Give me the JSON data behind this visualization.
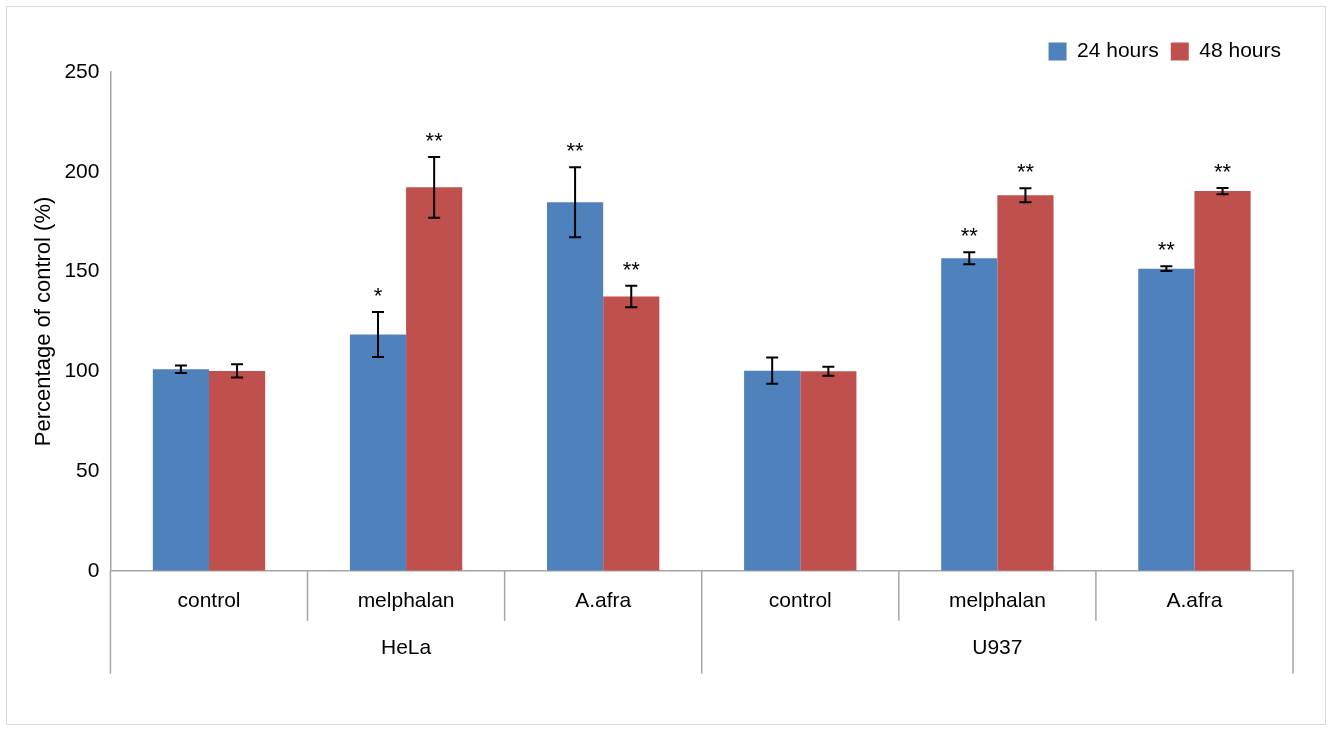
{
  "chart_data": {
    "type": "bar",
    "ylabel": "Percentage of control (%)",
    "categories": [
      "control",
      "melphalan",
      "A.afra",
      "control",
      "melphalan",
      "A.afra"
    ],
    "series": [
      {
        "name": "24 hours",
        "color": "#4f81bd",
        "values": [
          101,
          118.4,
          184.7,
          100.3,
          156.7,
          151.4
        ],
        "errors": [
          1.9,
          11.3,
          17.5,
          6.6,
          3,
          1.2
        ],
        "value_labels": [
          null,
          "*",
          "**",
          null,
          "**",
          "**"
        ]
      },
      {
        "name": "48 hours",
        "color": "#c0504d",
        "values": [
          100.2,
          192.2,
          137.5,
          100,
          188.2,
          190.3
        ],
        "errors": [
          3.3,
          15.2,
          5.4,
          2.3,
          3.5,
          1.6
        ],
        "value_labels": [
          null,
          "**",
          "**",
          null,
          "**",
          "**"
        ]
      }
    ],
    "annotations": [
      "HeLa",
      "U937"
    ],
    "ylim": [
      0,
      250
    ],
    "yticks": [
      0,
      50,
      100,
      150,
      200,
      250
    ],
    "grid": false,
    "legend": "top right"
  }
}
